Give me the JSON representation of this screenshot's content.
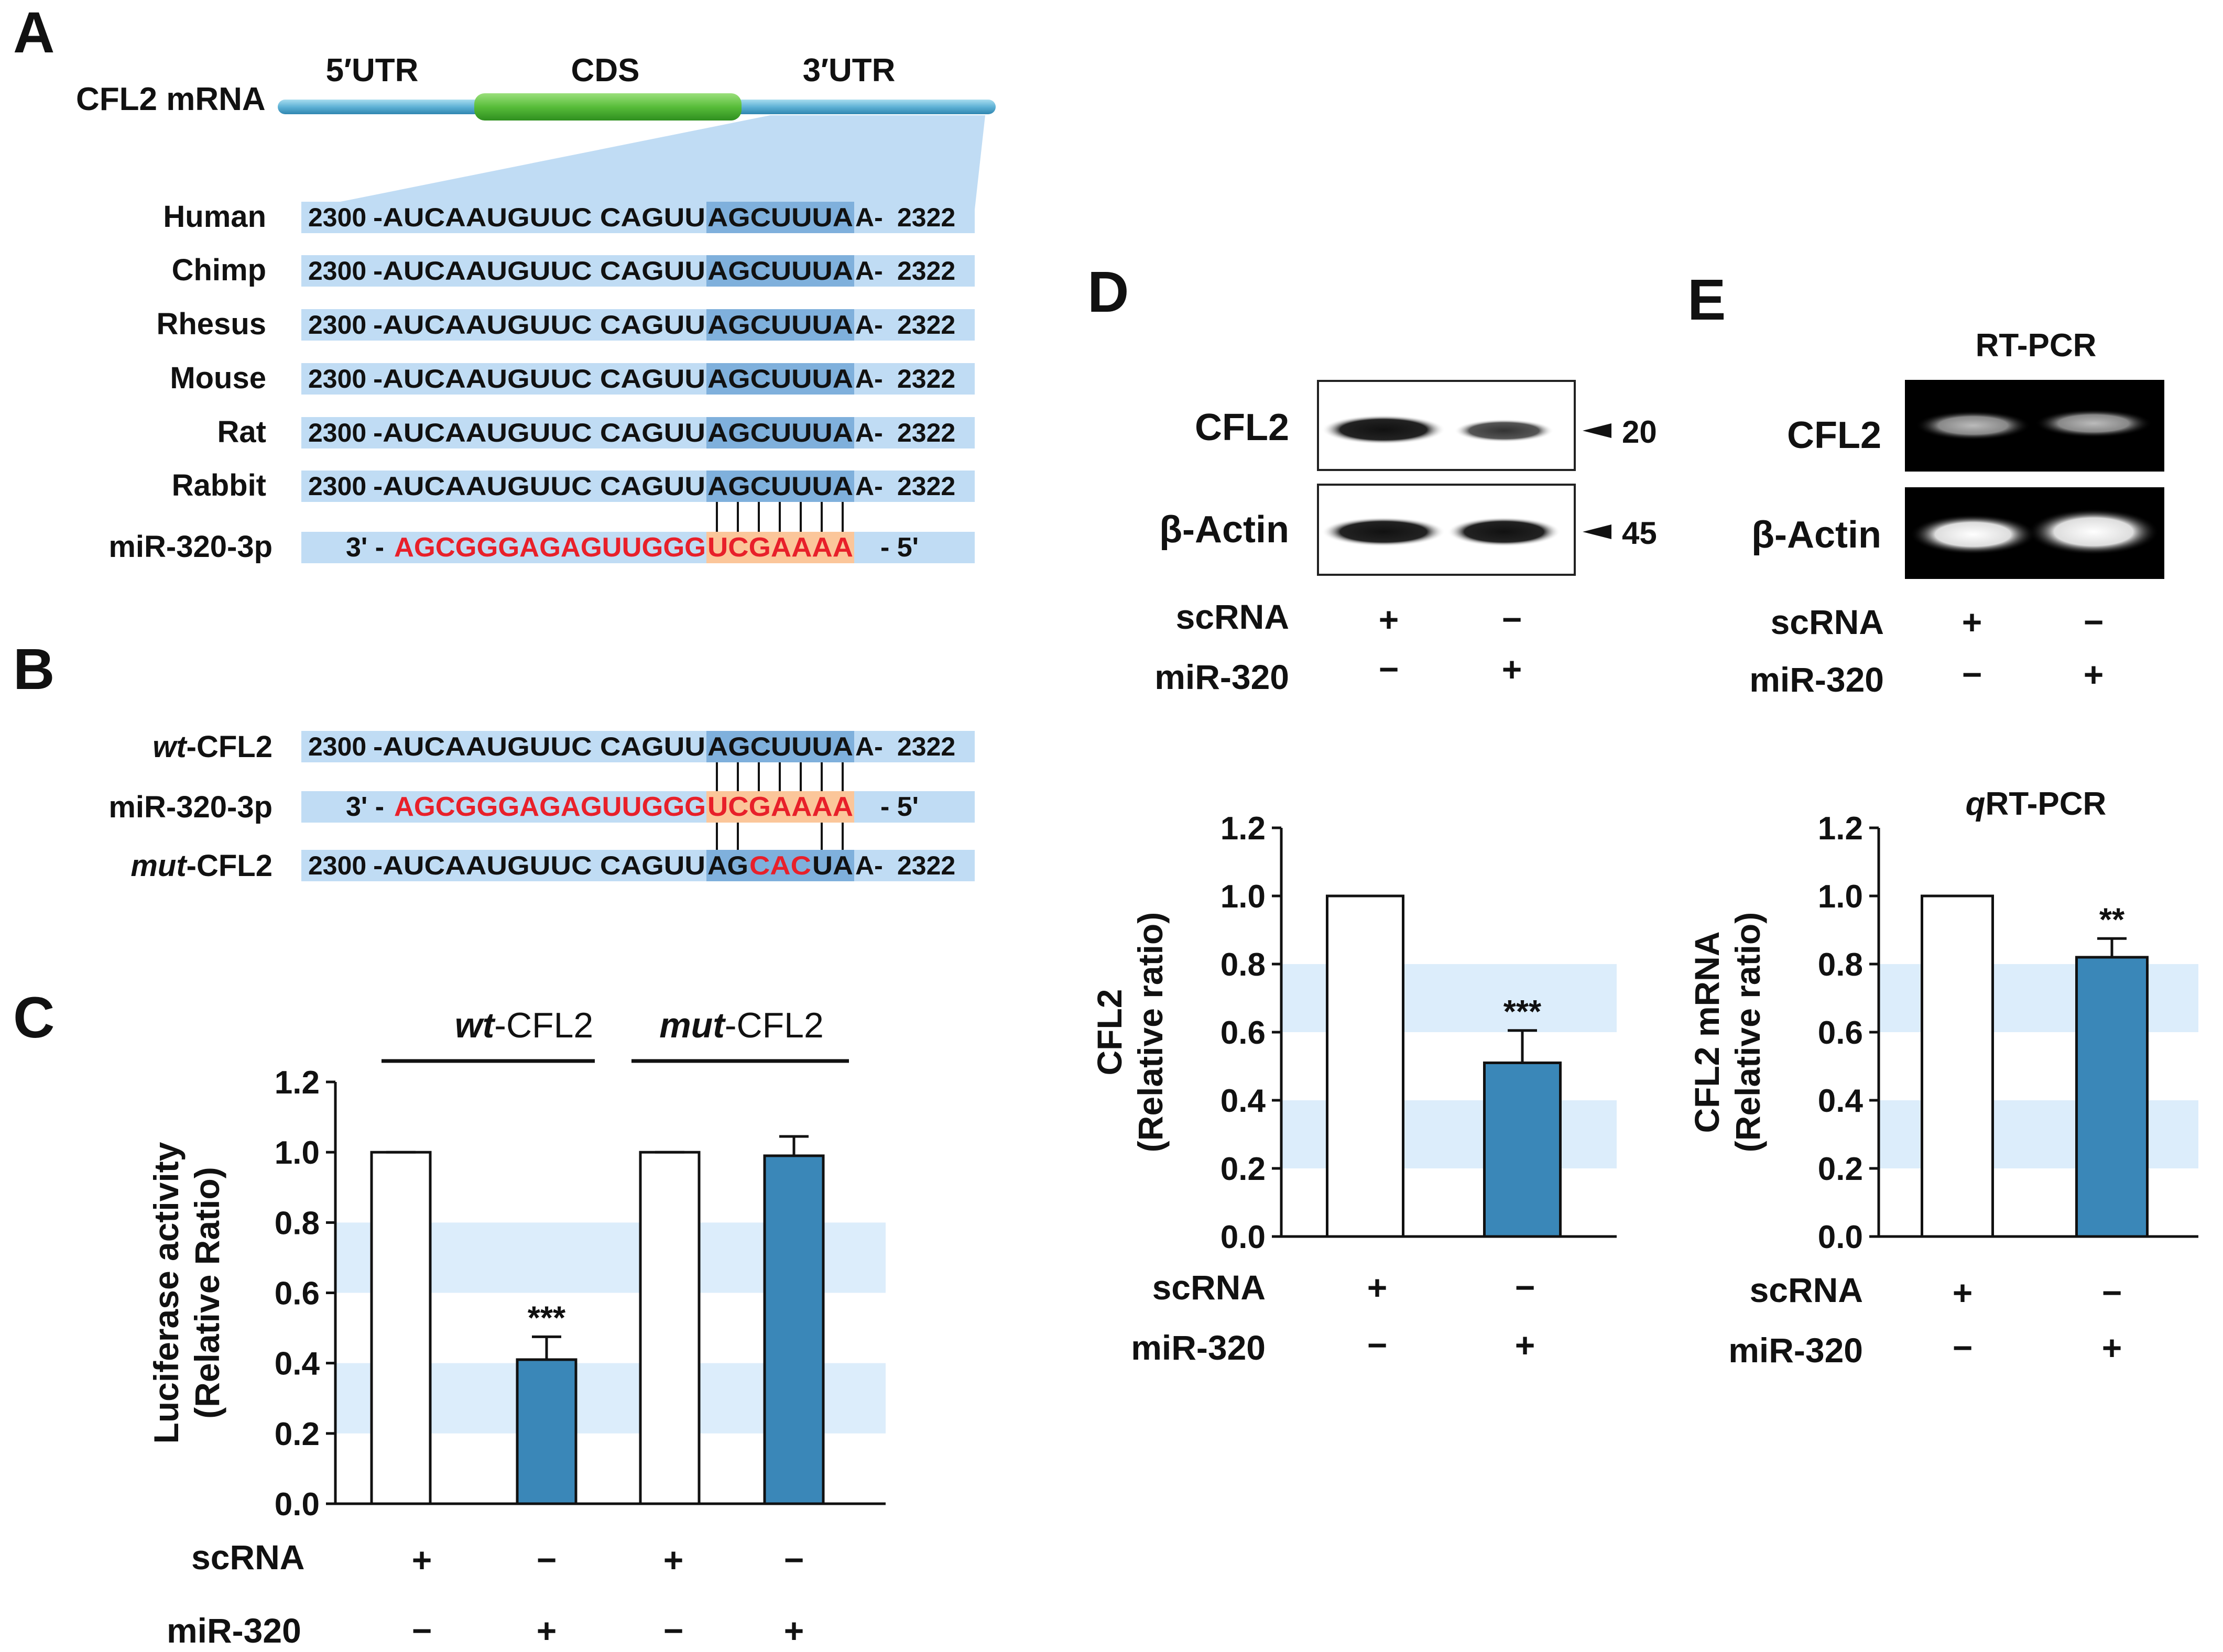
{
  "panelA": {
    "letter": "A",
    "mrna_label": "CFL2 mRNA",
    "regions": [
      "5′UTR",
      "CDS",
      "3′UTR"
    ],
    "alignment": [
      {
        "species": "Human",
        "start": "2300",
        "pre": "-AUCAAUGUUC CAGUU",
        "seed": "AGCUUUA",
        "post": "A-",
        "end": "2322"
      },
      {
        "species": "Chimp",
        "start": "2300",
        "pre": "-AUCAAUGUUC CAGUU",
        "seed": "AGCUUUA",
        "post": "A-",
        "end": "2322"
      },
      {
        "species": "Rhesus",
        "start": "2300",
        "pre": "-AUCAAUGUUC CAGUU",
        "seed": "AGCUUUA",
        "post": "A-",
        "end": "2322"
      },
      {
        "species": "Mouse",
        "start": "2300",
        "pre": "-AUCAAUGUUC CAGUU",
        "seed": "AGCUUUA",
        "post": "A-",
        "end": "2322"
      },
      {
        "species": "Rat",
        "start": "2300",
        "pre": "-AUCAAUGUUC CAGUU",
        "seed": "AGCUUUA",
        "post": "A-",
        "end": "2322"
      },
      {
        "species": "Rabbit",
        "start": "2300",
        "pre": "-AUCAAUGUUC CAGUU",
        "seed": "AGCUUUA",
        "post": "A-",
        "end": "2322"
      }
    ],
    "mirna": {
      "label": "miR-320-3p",
      "prefix": "3' -",
      "seq": "AGCGGGAGAGUUGGG",
      "seed": "UCGAAAA",
      "suffix": "- 5'"
    }
  },
  "panelB": {
    "letter": "B",
    "wt": {
      "label_italic": "wt",
      "label_rest": "-CFL2",
      "start": "2300",
      "pre": "-AUCAAUGUUC CAGUU",
      "seed": "AGCUUUA",
      "post": "A-",
      "end": "2322"
    },
    "mirna": {
      "label": "miR-320-3p",
      "prefix": "3' -",
      "seq": "AGCGGGAGAGUUGGG",
      "seed": "UCGAAAA",
      "suffix": "- 5'"
    },
    "mut": {
      "label_italic": "mut",
      "label_rest": "-CFL2",
      "start": "2300",
      "pre": "-AUCAAUGUUC CAGUU",
      "seed_parts": [
        "AG",
        "CAC",
        "UA"
      ],
      "post": "A-",
      "end": "2322"
    }
  },
  "panelC": {
    "letter": "C",
    "group_labels": [
      {
        "italic": "wt",
        "rest": "-CFL2"
      },
      {
        "italic": "mut",
        "rest": "-CFL2"
      }
    ],
    "row_labels": [
      "scRNA",
      "miR-320"
    ],
    "signs": {
      "scRNA": [
        "+",
        "−",
        "+",
        "−"
      ],
      "miR": [
        "−",
        "+",
        "−",
        "+"
      ]
    }
  },
  "panelD": {
    "letter": "D",
    "blot_labels": [
      "CFL2",
      "β-Actin"
    ],
    "markers": [
      "20",
      "45"
    ],
    "blot_rows": [
      "scRNA",
      "miR-320"
    ],
    "blot_signs": {
      "scRNA": [
        "+",
        "−"
      ],
      "miR": [
        "−",
        "+"
      ]
    },
    "row_labels": [
      "scRNA",
      "miR-320"
    ],
    "signs": {
      "scRNA": [
        "+",
        "−"
      ],
      "miR": [
        "−",
        "+"
      ]
    }
  },
  "panelE": {
    "letter": "E",
    "rt_title": "RT-PCR",
    "gel_labels": [
      "CFL2",
      "β-Actin"
    ],
    "gel_rows": [
      "scRNA",
      "miR-320"
    ],
    "gel_signs": {
      "scRNA": [
        "+",
        "−"
      ],
      "miR": [
        "−",
        "+"
      ]
    },
    "qpcr_title_italic": "q",
    "qpcr_title_rest": "RT-PCR",
    "row_labels": [
      "scRNA",
      "miR-320"
    ],
    "signs": {
      "scRNA": [
        "+",
        "−"
      ],
      "miR": [
        "−",
        "+"
      ]
    }
  },
  "colors": {
    "bar_fill": "#3a87b8",
    "band_fill": "#dcedfb",
    "row_bg": "#c0dcf4",
    "seed_bg": "#7fb0dc",
    "mirna_red": "#e8202a",
    "seed_orange": "#fbc69a",
    "cds_green": "#5cbf3c",
    "mrna_blue": "#6cb8d8"
  },
  "chart_data": [
    {
      "panel": "C",
      "type": "bar",
      "categories": [
        "wt-CFL2 scRNA",
        "wt-CFL2 miR-320",
        "mut-CFL2 scRNA",
        "mut-CFL2 miR-320"
      ],
      "values": [
        1.0,
        0.41,
        1.0,
        0.99
      ],
      "errors": [
        0.0,
        0.065,
        0.0,
        0.055
      ],
      "significance": [
        "",
        "***",
        "",
        ""
      ],
      "fills": [
        "white",
        "blue",
        "white",
        "blue"
      ],
      "ylabel_lines": [
        "Luciferase activity",
        "(Relative Ratio)"
      ],
      "ylim": [
        0,
        1.2
      ],
      "ticks": [
        "0.0",
        "0.2",
        "0.4",
        "0.6",
        "0.8",
        "1.0",
        "1.2"
      ]
    },
    {
      "panel": "D",
      "type": "bar",
      "categories": [
        "scRNA",
        "miR-320"
      ],
      "values": [
        1.0,
        0.51
      ],
      "errors": [
        0.0,
        0.095
      ],
      "significance": [
        "",
        "***"
      ],
      "fills": [
        "white",
        "blue"
      ],
      "ylabel_lines": [
        "CFL2",
        "(Relative ratio)"
      ],
      "ylim": [
        0,
        1.2
      ],
      "ticks": [
        "0.0",
        "0.2",
        "0.4",
        "0.6",
        "0.8",
        "1.0",
        "1.2"
      ]
    },
    {
      "panel": "E",
      "type": "bar",
      "categories": [
        "scRNA",
        "miR-320"
      ],
      "values": [
        1.0,
        0.82
      ],
      "errors": [
        0.0,
        0.055
      ],
      "significance": [
        "",
        "**"
      ],
      "fills": [
        "white",
        "blue"
      ],
      "ylabel_lines": [
        "CFL2 mRNA",
        "(Relative ratio)"
      ],
      "ylim": [
        0,
        1.2
      ],
      "ticks": [
        "0.0",
        "0.2",
        "0.4",
        "0.6",
        "0.8",
        "1.0",
        "1.2"
      ]
    }
  ]
}
